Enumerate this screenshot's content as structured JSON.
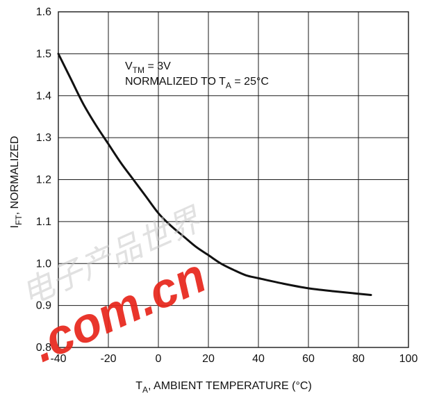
{
  "chart_data": {
    "type": "line",
    "title": "",
    "xlabel": {
      "main": "T",
      "sub": "A",
      "rest": ", AMBIENT TEMPERATURE (°C)"
    },
    "ylabel": {
      "main": "I",
      "sub": "FT",
      "rest": ", NORMALIZED"
    },
    "xlim": [
      -40,
      100
    ],
    "ylim": [
      0.8,
      1.6
    ],
    "x_ticks": [
      -40,
      -20,
      0,
      20,
      40,
      60,
      80,
      100
    ],
    "y_ticks": [
      0.8,
      0.9,
      1.0,
      1.1,
      1.2,
      1.3,
      1.4,
      1.5,
      1.6
    ],
    "x_tick_labels": [
      "-40",
      "-20",
      "0",
      "20",
      "40",
      "60",
      "80",
      "100"
    ],
    "y_tick_labels": [
      "0.8",
      "0.9",
      "1.0",
      "1.1",
      "1.2",
      "1.3",
      "1.4",
      "1.5",
      "1.6"
    ],
    "grid": true,
    "series": [
      {
        "x": [
          -40,
          -35,
          -30,
          -25,
          -20,
          -15,
          -10,
          -5,
          0,
          5,
          10,
          15,
          20,
          25,
          30,
          35,
          40,
          50,
          60,
          70,
          80,
          85
        ],
        "y": [
          1.5,
          1.44,
          1.38,
          1.33,
          1.285,
          1.24,
          1.2,
          1.16,
          1.12,
          1.09,
          1.065,
          1.04,
          1.02,
          1.0,
          0.985,
          0.972,
          0.965,
          0.952,
          0.941,
          0.934,
          0.928,
          0.925
        ]
      }
    ],
    "annotations": [
      {
        "main": "V",
        "sub": "TM",
        "rest": " = 3V"
      },
      {
        "main": "NORMALIZED TO T",
        "sub": "A",
        "rest": " = 25°C"
      }
    ]
  },
  "watermark": {
    "cjk_text": "电子产品世界",
    "domain_text": ".com.cn",
    "domain_color": "#e8261b"
  }
}
